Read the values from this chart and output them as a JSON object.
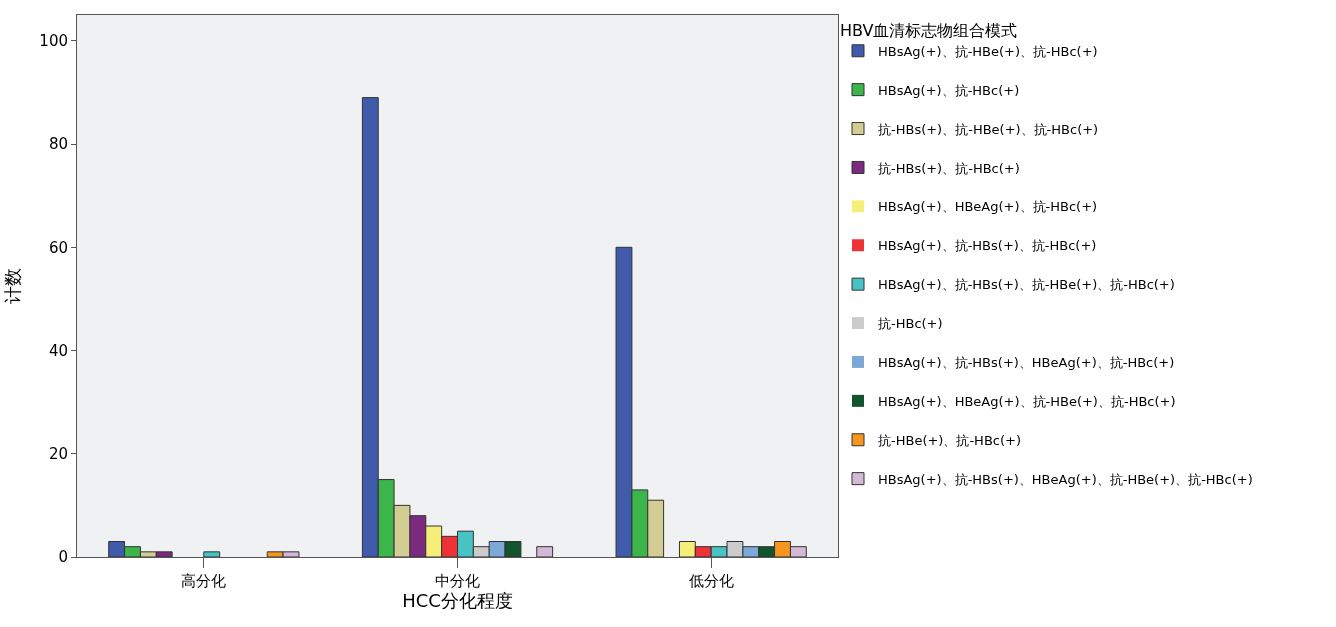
{
  "chart_data": {
    "type": "bar",
    "xlabel": "HCC分化程度",
    "ylabel": "计数",
    "legend_title": "HBV血清标志物组合模式",
    "categories": [
      "高分化",
      "中分化",
      "低分化"
    ],
    "ylim": [
      0,
      105
    ],
    "yticks": [
      0,
      20,
      40,
      60,
      80,
      100
    ],
    "grid": false,
    "legend": "top right",
    "series": [
      {
        "name": "HBsAg(+)、抗-HBe(+)、抗-HBc(+)",
        "color": "#3f5ba9",
        "values": [
          3,
          89,
          60
        ]
      },
      {
        "name": "HBsAg(+)、抗-HBc(+)",
        "color": "#3cb54a",
        "values": [
          2,
          15,
          13
        ]
      },
      {
        "name": "抗-HBs(+)、抗-HBe(+)、抗-HBc(+)",
        "color": "#d3cd93",
        "values": [
          1,
          10,
          11
        ]
      },
      {
        "name": "抗-HBs(+)、抗-HBc(+)",
        "color": "#7b2a7f",
        "values": [
          1,
          8,
          0
        ]
      },
      {
        "name": "HBsAg(+)、HBeAg(+)、抗-HBc(+)",
        "color": "#f5ef7a",
        "values": [
          0,
          6,
          3
        ]
      },
      {
        "name": "HBsAg(+)、抗-HBs(+)、抗-HBc(+)",
        "color": "#ee3338",
        "values": [
          0,
          4,
          2
        ]
      },
      {
        "name": "HBsAg(+)、抗-HBs(+)、抗-HBe(+)、抗-HBc(+)",
        "color": "#48c3c3",
        "values": [
          1,
          5,
          2
        ]
      },
      {
        "name": "抗-HBc(+)",
        "color": "#cccccc",
        "values": [
          0,
          2,
          3
        ]
      },
      {
        "name": "HBsAg(+)、抗-HBs(+)、HBeAg(+)、抗-HBc(+)",
        "color": "#7baad8",
        "values": [
          0,
          3,
          2
        ]
      },
      {
        "name": "HBsAg(+)、HBeAg(+)、抗-HBe(+)、抗-HBc(+)",
        "color": "#12552c",
        "values": [
          0,
          3,
          2
        ]
      },
      {
        "name": "抗-HBe(+)、抗-HBc(+)",
        "color": "#f7961e",
        "values": [
          1,
          0,
          3
        ]
      },
      {
        "name": "HBsAg(+)、抗-HBs(+)、HBeAg(+)、抗-HBe(+)、抗-HBc(+)",
        "color": "#d4b8d8",
        "values": [
          1,
          2,
          2
        ]
      }
    ]
  }
}
